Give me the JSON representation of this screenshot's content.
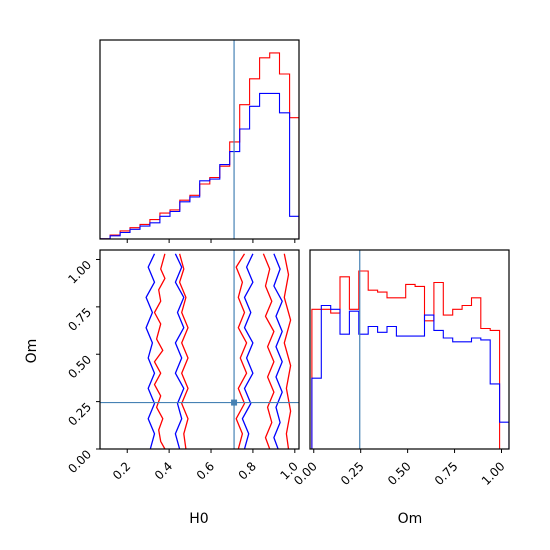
{
  "chart_data": {
    "type": "corner",
    "parameters": [
      "H0",
      "Om"
    ],
    "truth": {
      "H0": 0.71,
      "Om": 0.245
    },
    "colors": {
      "red": "#ff0000",
      "blue": "#0000ff",
      "truth": "#4682b4"
    },
    "panels": [
      {
        "id": "hist-h0",
        "type": "histogram",
        "xlim": [
          0.07,
          1.02
        ],
        "xticks": [
          0.2,
          0.4,
          0.6,
          0.8,
          1.0
        ],
        "bin_edges": [
          0.07,
          0.118,
          0.166,
          0.213,
          0.261,
          0.308,
          0.356,
          0.404,
          0.451,
          0.499,
          0.546,
          0.594,
          0.642,
          0.689,
          0.737,
          0.784,
          0.832,
          0.88,
          0.927,
          0.975,
          1.02
        ],
        "series": [
          {
            "name": "red",
            "values": [
              0.1,
              2.5,
              5,
              7,
              9,
              12,
              16,
              18,
              24,
              27,
              34,
              38,
              45,
              60,
              83,
              99,
              112,
              115,
              102,
              75
            ]
          },
          {
            "name": "blue",
            "values": [
              0.1,
              2,
              4,
              6,
              8,
              10,
              14,
              17,
              23,
              26,
              36,
              37,
              46,
              54,
              68,
              82,
              90,
              90,
              78,
              14
            ]
          }
        ]
      },
      {
        "id": "contour-h0-om",
        "type": "contour",
        "xlabel": "H0",
        "ylabel": "Om",
        "xlim": [
          0.07,
          1.02
        ],
        "ylim": [
          0.0,
          1.05
        ],
        "xticks": [
          0.2,
          0.4,
          0.6,
          0.8,
          1.0
        ],
        "yticks": [
          0.0,
          0.25,
          0.5,
          0.75,
          1.0
        ],
        "xtick_labels": [
          "0.2",
          "0.4",
          "0.6",
          "0.8",
          "1.0"
        ],
        "ytick_labels": [
          "0.00",
          "0.25",
          "0.50",
          "0.75",
          "1.00"
        ],
        "series": [
          {
            "name": "red",
            "contours": [
              [
                [
                  0.38,
                  1.03
                ],
                [
                  0.36,
                  0.95
                ],
                [
                  0.38,
                  0.9
                ],
                [
                  0.35,
                  0.84
                ],
                [
                  0.36,
                  0.78
                ],
                [
                  0.33,
                  0.72
                ],
                [
                  0.36,
                  0.66
                ],
                [
                  0.34,
                  0.58
                ],
                [
                  0.37,
                  0.52
                ],
                [
                  0.33,
                  0.46
                ],
                [
                  0.36,
                  0.4
                ],
                [
                  0.33,
                  0.34
                ],
                [
                  0.36,
                  0.28
                ],
                [
                  0.34,
                  0.22
                ],
                [
                  0.37,
                  0.16
                ],
                [
                  0.35,
                  0.1
                ],
                [
                  0.36,
                  0.04
                ],
                [
                  0.38,
                  0.0
                ]
              ],
              [
                [
                  0.45,
                  1.03
                ],
                [
                  0.47,
                  0.95
                ],
                [
                  0.45,
                  0.88
                ],
                [
                  0.48,
                  0.8
                ],
                [
                  0.46,
                  0.72
                ],
                [
                  0.49,
                  0.64
                ],
                [
                  0.46,
                  0.56
                ],
                [
                  0.49,
                  0.48
                ],
                [
                  0.46,
                  0.4
                ],
                [
                  0.49,
                  0.32
                ],
                [
                  0.46,
                  0.24
                ],
                [
                  0.49,
                  0.16
                ],
                [
                  0.47,
                  0.08
                ],
                [
                  0.48,
                  0.0
                ]
              ],
              [
                [
                  0.76,
                  1.03
                ],
                [
                  0.72,
                  0.96
                ],
                [
                  0.75,
                  0.88
                ],
                [
                  0.73,
                  0.8
                ],
                [
                  0.76,
                  0.72
                ],
                [
                  0.73,
                  0.64
                ],
                [
                  0.77,
                  0.56
                ],
                [
                  0.74,
                  0.48
                ],
                [
                  0.77,
                  0.4
                ],
                [
                  0.73,
                  0.32
                ],
                [
                  0.76,
                  0.24
                ],
                [
                  0.72,
                  0.16
                ],
                [
                  0.75,
                  0.08
                ],
                [
                  0.73,
                  0.0
                ]
              ],
              [
                [
                  0.85,
                  1.03
                ],
                [
                  0.88,
                  0.95
                ],
                [
                  0.86,
                  0.86
                ],
                [
                  0.89,
                  0.78
                ],
                [
                  0.86,
                  0.7
                ],
                [
                  0.9,
                  0.62
                ],
                [
                  0.87,
                  0.54
                ],
                [
                  0.9,
                  0.46
                ],
                [
                  0.87,
                  0.38
                ],
                [
                  0.9,
                  0.3
                ],
                [
                  0.87,
                  0.22
                ],
                [
                  0.89,
                  0.14
                ],
                [
                  0.86,
                  0.06
                ],
                [
                  0.88,
                  0.0
                ]
              ],
              [
                [
                  0.95,
                  1.03
                ],
                [
                  0.97,
                  0.92
                ],
                [
                  0.95,
                  0.8
                ],
                [
                  0.98,
                  0.68
                ],
                [
                  0.95,
                  0.56
                ],
                [
                  0.98,
                  0.44
                ],
                [
                  0.96,
                  0.32
                ],
                [
                  0.98,
                  0.2
                ],
                [
                  0.96,
                  0.08
                ],
                [
                  0.97,
                  0.0
                ]
              ]
            ]
          },
          {
            "name": "blue",
            "contours": [
              [
                [
                  0.33,
                  1.03
                ],
                [
                  0.3,
                  0.96
                ],
                [
                  0.33,
                  0.88
                ],
                [
                  0.29,
                  0.8
                ],
                [
                  0.32,
                  0.72
                ],
                [
                  0.29,
                  0.64
                ],
                [
                  0.32,
                  0.56
                ],
                [
                  0.3,
                  0.48
                ],
                [
                  0.33,
                  0.4
                ],
                [
                  0.3,
                  0.32
                ],
                [
                  0.33,
                  0.24
                ],
                [
                  0.3,
                  0.16
                ],
                [
                  0.33,
                  0.08
                ],
                [
                  0.31,
                  0.0
                ]
              ],
              [
                [
                  0.43,
                  1.03
                ],
                [
                  0.46,
                  0.96
                ],
                [
                  0.43,
                  0.88
                ],
                [
                  0.47,
                  0.8
                ],
                [
                  0.44,
                  0.72
                ],
                [
                  0.47,
                  0.64
                ],
                [
                  0.43,
                  0.56
                ],
                [
                  0.46,
                  0.48
                ],
                [
                  0.43,
                  0.4
                ],
                [
                  0.47,
                  0.32
                ],
                [
                  0.44,
                  0.24
                ],
                [
                  0.46,
                  0.16
                ],
                [
                  0.43,
                  0.08
                ],
                [
                  0.45,
                  0.0
                ]
              ],
              [
                [
                  0.8,
                  1.03
                ],
                [
                  0.77,
                  0.96
                ],
                [
                  0.8,
                  0.88
                ],
                [
                  0.76,
                  0.8
                ],
                [
                  0.79,
                  0.72
                ],
                [
                  0.76,
                  0.64
                ],
                [
                  0.8,
                  0.56
                ],
                [
                  0.77,
                  0.48
                ],
                [
                  0.8,
                  0.4
                ],
                [
                  0.76,
                  0.32
                ],
                [
                  0.79,
                  0.24
                ],
                [
                  0.75,
                  0.16
                ],
                [
                  0.78,
                  0.08
                ],
                [
                  0.76,
                  0.0
                ]
              ],
              [
                [
                  0.9,
                  1.03
                ],
                [
                  0.93,
                  0.95
                ],
                [
                  0.9,
                  0.86
                ],
                [
                  0.94,
                  0.78
                ],
                [
                  0.91,
                  0.7
                ],
                [
                  0.94,
                  0.62
                ],
                [
                  0.91,
                  0.54
                ],
                [
                  0.94,
                  0.46
                ],
                [
                  0.91,
                  0.38
                ],
                [
                  0.94,
                  0.3
                ],
                [
                  0.91,
                  0.22
                ],
                [
                  0.93,
                  0.14
                ],
                [
                  0.9,
                  0.06
                ],
                [
                  0.92,
                  0.0
                ]
              ]
            ]
          }
        ]
      },
      {
        "id": "hist-om",
        "type": "histogram",
        "xlabel": "Om",
        "xlim": [
          -0.02,
          1.04
        ],
        "xticks": [
          0.0,
          0.25,
          0.5,
          0.75,
          1.0
        ],
        "xtick_labels": [
          "0.00",
          "0.25",
          "0.50",
          "0.75",
          "1.00"
        ],
        "bin_edges": [
          -0.01,
          0.04,
          0.09,
          0.14,
          0.19,
          0.24,
          0.29,
          0.34,
          0.39,
          0.44,
          0.49,
          0.54,
          0.59,
          0.64,
          0.69,
          0.74,
          0.79,
          0.84,
          0.89,
          0.94,
          0.99,
          1.04
        ],
        "series": [
          {
            "name": "red",
            "values": [
              73,
              73,
              71,
              90,
              73,
              93,
              83,
              82,
              79,
              79,
              86,
              85,
              67,
              87,
              70,
              73,
              75,
              79,
              63,
              62,
              0
            ]
          },
          {
            "name": "blue",
            "values": [
              37,
              75,
              73,
              60,
              72,
              60,
              64,
              61,
              64,
              59,
              59,
              59,
              70,
              62,
              58,
              56,
              56,
              58,
              57,
              34,
              14
            ]
          }
        ]
      }
    ]
  }
}
